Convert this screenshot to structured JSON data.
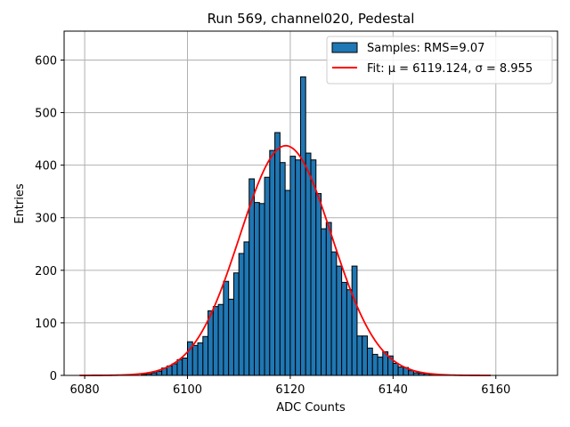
{
  "chart_data": {
    "type": "bar",
    "title": "Run 569, channel020, Pedestal",
    "xlabel": "ADC Counts",
    "ylabel": "Entries",
    "xlim": [
      6076,
      6172
    ],
    "ylim": [
      0,
      655
    ],
    "grid": true,
    "legend_placement": "upper-right",
    "xticks": [
      6080,
      6100,
      6120,
      6140,
      6160
    ],
    "yticks": [
      0,
      100,
      200,
      300,
      400,
      500,
      600
    ],
    "histogram": {
      "name": "Samples: RMS=9.07",
      "color": "#1f77b4",
      "bin_width": 1,
      "bins": [
        [
          6091,
          2
        ],
        [
          6092,
          3
        ],
        [
          6093,
          5
        ],
        [
          6094,
          8
        ],
        [
          6095,
          14
        ],
        [
          6096,
          18
        ],
        [
          6097,
          22
        ],
        [
          6098,
          30
        ],
        [
          6099,
          33
        ],
        [
          6100,
          64
        ],
        [
          6101,
          57
        ],
        [
          6102,
          62
        ],
        [
          6103,
          74
        ],
        [
          6104,
          123
        ],
        [
          6105,
          131
        ],
        [
          6106,
          135
        ],
        [
          6107,
          179
        ],
        [
          6108,
          145
        ],
        [
          6109,
          195
        ],
        [
          6110,
          232
        ],
        [
          6111,
          254
        ],
        [
          6112,
          374
        ],
        [
          6113,
          329
        ],
        [
          6114,
          327
        ],
        [
          6115,
          377
        ],
        [
          6116,
          428
        ],
        [
          6117,
          462
        ],
        [
          6118,
          405
        ],
        [
          6119,
          352
        ],
        [
          6120,
          417
        ],
        [
          6121,
          410
        ],
        [
          6122,
          568
        ],
        [
          6123,
          423
        ],
        [
          6124,
          410
        ],
        [
          6125,
          346
        ],
        [
          6126,
          279
        ],
        [
          6127,
          291
        ],
        [
          6128,
          235
        ],
        [
          6129,
          208
        ],
        [
          6130,
          177
        ],
        [
          6131,
          163
        ],
        [
          6132,
          208
        ],
        [
          6133,
          75
        ],
        [
          6134,
          75
        ],
        [
          6135,
          52
        ],
        [
          6136,
          40
        ],
        [
          6137,
          35
        ],
        [
          6138,
          45
        ],
        [
          6139,
          37
        ],
        [
          6140,
          23
        ],
        [
          6141,
          16
        ],
        [
          6142,
          15
        ],
        [
          6143,
          9
        ],
        [
          6144,
          5
        ],
        [
          6145,
          4
        ],
        [
          6146,
          3
        ],
        [
          6147,
          2
        ]
      ]
    },
    "fit": {
      "name": "Fit: μ = 6119.124, σ = 8.955",
      "color": "#ff0000",
      "mu": 6119.124,
      "sigma": 8.955,
      "amplitude": 437,
      "x_range": [
        6079,
        6159
      ]
    }
  }
}
